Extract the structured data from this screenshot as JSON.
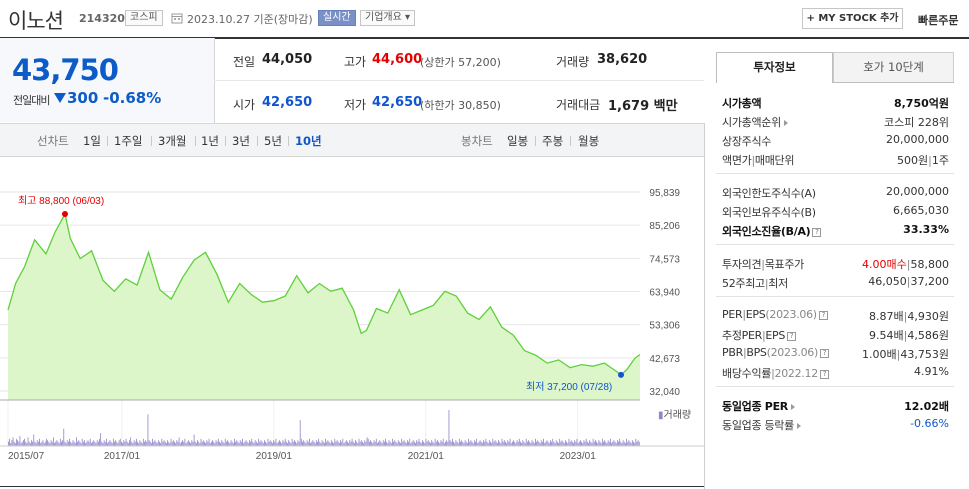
{
  "header": {
    "name": "이노션",
    "code": "214320",
    "market": "코스피",
    "date": "2023.10.27",
    "date_suffix": "기준(장마감)",
    "realtime": "실시간",
    "overview": "기업개요",
    "overview_caret": "▾",
    "mystock": "+ MY STOCK 추가",
    "quick_order": "빠른주문"
  },
  "price": {
    "current": "43,750",
    "change_label": "전일대비",
    "change": "300",
    "change_pct": "-0.68%",
    "prev_label": "전일",
    "prev": "44,050",
    "high_label": "고가",
    "high": "44,600",
    "upper_label": "(상한가",
    "upper": "57,200",
    "upper_close": ")",
    "volume_label": "거래량",
    "volume": "38,620",
    "open_label": "시가",
    "open": "42,650",
    "low_label": "저가",
    "low": "42,650",
    "lower_label": "(하한가",
    "lower": "30,850",
    "lower_close": ")",
    "amount_label": "거래대금",
    "amount": "1,679",
    "amount_unit": "백만"
  },
  "chart_tabs": {
    "line_label": "선차트",
    "line": [
      "1일",
      "1주일",
      "3개월",
      "1년",
      "3년",
      "5년",
      "10년"
    ],
    "active": "10년",
    "candle_label": "봉차트",
    "candle": [
      "일봉",
      "주봉",
      "월봉"
    ]
  },
  "chart_data": {
    "type": "area",
    "y_ticks": [
      95839,
      85206,
      74573,
      63940,
      53306,
      42673,
      32040
    ],
    "y_tick_labels": [
      "95,839",
      "85,206",
      "74,573",
      "63,940",
      "53,306",
      "42,673",
      "32,040"
    ],
    "ylim": [
      32040,
      95839
    ],
    "x_tick_labels": [
      "2015/07",
      "2017/01",
      "2019/01",
      "2021/01",
      "2023/01"
    ],
    "x_ticks": [
      2015.5,
      2017.0,
      2019.0,
      2021.0,
      2023.0
    ],
    "xlim": [
      2015.5,
      2023.82
    ],
    "series": [
      {
        "x": [
          2015.5,
          2015.6,
          2015.72,
          2015.85,
          2016.0,
          2016.12,
          2016.25,
          2016.32,
          2016.45,
          2016.6,
          2016.75,
          2016.9,
          2017.05,
          2017.2,
          2017.35,
          2017.5,
          2017.65,
          2017.8,
          2017.95,
          2018.1,
          2018.25,
          2018.4,
          2018.55,
          2018.7,
          2018.85,
          2019.0,
          2019.15,
          2019.3,
          2019.45,
          2019.6,
          2019.75,
          2019.9,
          2020.05,
          2020.15,
          2020.22,
          2020.35,
          2020.5,
          2020.65,
          2020.8,
          2020.95,
          2021.1,
          2021.25,
          2021.4,
          2021.55,
          2021.7,
          2021.85,
          2022.0,
          2022.15,
          2022.3,
          2022.45,
          2022.6,
          2022.75,
          2022.9,
          2023.05,
          2023.2,
          2023.35,
          2023.5,
          2023.57,
          2023.65,
          2023.75,
          2023.82
        ],
        "values": [
          58000,
          66500,
          72000,
          80500,
          76000,
          83000,
          88800,
          81000,
          74500,
          77000,
          67500,
          64000,
          68000,
          66000,
          76500,
          64500,
          61500,
          68500,
          74000,
          76500,
          69500,
          60500,
          66500,
          63000,
          60500,
          61000,
          62500,
          69000,
          63500,
          66500,
          64000,
          65000,
          58000,
          50500,
          51500,
          58500,
          57000,
          64500,
          56500,
          58000,
          59500,
          64000,
          62500,
          57000,
          55000,
          59000,
          52500,
          50000,
          45000,
          43500,
          41000,
          42000,
          39500,
          40500,
          40000,
          41000,
          38500,
          37200,
          39000,
          42500,
          43750
        ]
      }
    ],
    "high_label": "최고",
    "high_value": "88,800",
    "high_date": "(06/03)",
    "high_x": 2016.25,
    "high_y": 88800,
    "low_label": "최저",
    "low_value": "37,200",
    "low_date": "(07/28)",
    "low_x": 2023.57,
    "low_y": 37200,
    "volume_label": "거래량",
    "volume_bars": [
      3,
      5,
      2,
      4,
      6,
      3,
      2,
      5,
      4,
      3,
      7,
      2,
      3,
      4,
      5,
      3,
      2,
      6,
      3,
      2,
      4,
      3,
      8,
      3,
      2,
      4,
      3,
      5,
      2,
      3,
      4,
      2,
      3,
      5,
      4,
      3,
      2,
      4,
      3,
      6,
      2,
      3,
      4,
      3,
      2,
      5,
      3,
      4,
      12,
      3,
      2,
      4,
      3,
      5,
      3,
      2,
      4,
      3,
      2,
      6,
      3,
      4,
      3,
      2,
      5,
      3,
      4,
      2,
      3,
      4,
      3,
      5,
      2,
      3,
      4,
      3,
      2,
      4,
      3,
      5,
      9,
      3,
      2,
      4,
      3,
      5,
      2,
      3,
      4,
      3,
      2,
      5,
      3,
      4,
      3,
      2,
      4,
      5,
      3,
      2,
      4,
      3,
      5,
      3,
      2,
      4,
      6,
      3,
      2,
      4,
      3,
      5,
      3,
      2,
      4,
      3,
      2,
      5,
      3,
      4,
      3,
      22,
      4,
      3,
      2,
      5,
      3,
      4,
      3,
      2,
      4,
      3,
      2,
      5,
      3,
      4,
      3,
      2,
      4,
      3,
      2,
      5,
      3,
      4,
      3,
      2,
      4,
      3,
      6,
      2,
      3,
      4,
      3,
      5,
      2,
      3,
      4,
      3,
      2,
      4,
      3,
      8,
      3,
      2,
      4,
      3,
      2,
      5,
      3,
      4,
      3,
      2,
      4,
      3,
      5,
      2,
      3,
      4,
      3,
      2,
      4,
      3,
      5,
      3,
      2,
      4,
      3,
      2,
      5,
      3,
      4,
      3,
      2,
      4,
      3,
      2,
      5,
      3,
      4,
      3,
      2,
      4,
      3,
      5,
      2,
      3,
      4,
      3,
      2,
      4,
      3,
      5,
      3,
      2,
      4,
      3,
      2,
      5,
      3,
      4,
      3,
      2,
      4,
      3,
      2,
      5,
      3,
      4,
      3,
      2,
      4,
      3,
      5,
      2,
      3,
      4,
      3,
      2,
      4,
      3,
      5,
      3,
      2,
      4,
      3,
      2,
      5,
      3,
      4,
      3,
      2,
      4,
      3,
      18,
      5,
      3,
      4,
      3,
      2,
      4,
      3,
      5,
      2,
      3,
      4,
      3,
      2,
      4,
      3,
      5,
      3,
      2,
      4,
      3,
      2,
      5,
      3,
      4,
      3,
      2,
      4,
      3,
      2,
      5,
      3,
      4,
      3,
      2,
      4,
      3,
      5,
      2,
      3,
      4,
      3,
      2,
      4,
      3,
      5,
      3,
      2,
      4,
      3,
      2,
      5,
      3,
      4,
      3,
      2,
      4,
      3,
      6,
      5,
      3,
      4,
      3,
      2,
      4,
      3,
      5,
      2,
      3,
      4,
      3,
      2,
      4,
      3,
      5,
      3,
      2,
      4,
      3,
      2,
      5,
      3,
      4,
      3,
      2,
      4,
      3,
      2,
      5,
      3,
      4,
      3,
      2,
      4,
      3,
      5,
      2,
      3,
      4,
      3,
      2,
      4,
      3,
      5,
      3,
      2,
      4,
      3,
      2,
      5,
      3,
      4,
      3,
      2,
      4,
      3,
      2,
      5,
      3,
      4,
      3,
      2,
      4,
      3,
      5,
      2,
      3,
      4,
      3,
      25,
      4,
      3,
      5,
      3,
      2,
      4,
      3,
      2,
      5,
      3,
      4,
      3,
      2,
      4,
      3,
      2,
      5,
      3,
      4,
      3,
      2,
      4,
      3,
      5,
      2,
      3,
      4,
      3,
      2,
      4,
      3,
      5,
      3,
      2,
      4,
      3,
      2,
      5,
      3,
      4,
      3,
      2,
      4,
      3,
      2,
      5,
      3,
      4,
      3,
      2,
      4,
      3,
      5,
      2,
      3,
      4,
      3,
      2,
      4,
      3,
      5,
      3,
      2,
      4,
      3,
      2,
      5,
      3,
      4,
      3,
      2,
      4,
      3,
      2,
      5,
      3,
      4,
      3,
      2,
      4,
      3,
      5,
      2,
      3,
      4,
      3,
      2,
      4,
      3,
      5,
      3,
      2,
      4,
      3,
      2,
      5,
      3,
      4,
      3,
      2,
      4,
      3,
      2,
      5,
      3,
      4,
      3,
      2,
      4,
      3,
      5,
      2,
      3,
      4,
      3,
      2,
      4,
      3,
      5,
      3,
      2,
      4,
      3,
      2,
      5,
      3,
      4,
      3,
      2,
      4,
      3,
      2,
      5,
      3,
      4,
      3,
      2,
      4,
      3,
      5,
      2,
      3,
      4,
      3,
      2,
      4,
      3,
      5,
      3,
      2,
      4,
      3,
      2,
      5,
      3,
      4,
      3,
      2,
      4,
      3,
      2,
      5,
      3,
      4,
      3
    ]
  },
  "invest": {
    "tab_invest": "투자정보",
    "tab_hoga": "호가 10단계",
    "market_cap_label": "시가총액",
    "market_cap": "8,750억원",
    "cap_rank_label": "시가총액순위",
    "cap_rank": "코스피 228위",
    "shares_label": "상장주식수",
    "shares": "20,000,000",
    "par_label": "액면가",
    "unit_label": "매매단위",
    "par": "500원",
    "unit": "1주",
    "foreign_limit_label": "외국인한도주식수(A)",
    "foreign_limit": "20,000,000",
    "foreign_hold_label": "외국인보유주식수(B)",
    "foreign_hold": "6,665,030",
    "foreign_rate_label": "외국인소진율(B/A)",
    "foreign_rate": "33.33%",
    "opinion_label": "투자의견",
    "target_label": "목표주가",
    "opinion": "4.00매수",
    "target": "58,800",
    "w52_high_label": "52주최고",
    "w52_low_label": "최저",
    "w52_high": "46,050",
    "w52_low": "37,200",
    "per_label": "PER",
    "eps_label": "EPS",
    "per_eps_period": "(2023.06)",
    "per": "8.87배",
    "eps": "4,930원",
    "est_per_label": "추정PER",
    "est_eps_label": "EPS",
    "est_per": "9.54배",
    "est_eps": "4,586원",
    "pbr_label": "PBR",
    "bps_label": "BPS",
    "pbr_bps_period": "(2023.06)",
    "pbr": "1.00배",
    "bps": "43,753원",
    "div_label": "배당수익률",
    "div_period": "2022.12",
    "div": "4.91%",
    "sector_per_label": "동일업종 PER",
    "sector_per": "12.02배",
    "sector_rate_label": "동일업종 등락률",
    "sector_rate": "-0.66%",
    "sep": "|",
    "help": "?"
  },
  "colors": {
    "blue": "#0b5bc8",
    "red": "#e40000",
    "area": "#d8f5c4",
    "line": "#5ed13a"
  }
}
